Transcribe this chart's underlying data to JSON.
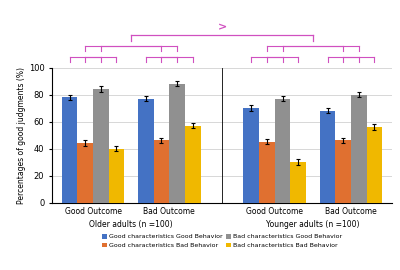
{
  "bar_colors": [
    "#4472C4",
    "#E07030",
    "#909090",
    "#F0B800"
  ],
  "series_labels": [
    "Good characteristics Good Behavior",
    "Good characteristics Bad Behavior",
    "Bad characteristics Good Behavior",
    "Bad characteristics Bad Behavior"
  ],
  "values": {
    "older_good_outcome": [
      78,
      44,
      84,
      40
    ],
    "older_bad_outcome": [
      77,
      46,
      88,
      57
    ],
    "younger_good_outcome": [
      70,
      45,
      77,
      30
    ],
    "younger_bad_outcome": [
      68,
      46,
      80,
      56
    ]
  },
  "errors": {
    "older_good_outcome": [
      2,
      2,
      2,
      2
    ],
    "older_bad_outcome": [
      2,
      2,
      2,
      2
    ],
    "younger_good_outcome": [
      2,
      2,
      2,
      2
    ],
    "younger_bad_outcome": [
      2,
      2,
      2,
      2
    ]
  },
  "ylabel": "Percentages of good judgments (%)",
  "ylim": [
    0,
    100
  ],
  "yticks": [
    0,
    20,
    40,
    60,
    80,
    100
  ],
  "bracket_color": "#D050C0",
  "background_color": "#FFFFFF",
  "group_labels": [
    "Good Outcome",
    "Bad Outcome",
    "Good Outcome",
    "Bad Outcome"
  ],
  "section_labels": [
    "Older adults (n =100)",
    "Younger adults (n =100)"
  ]
}
